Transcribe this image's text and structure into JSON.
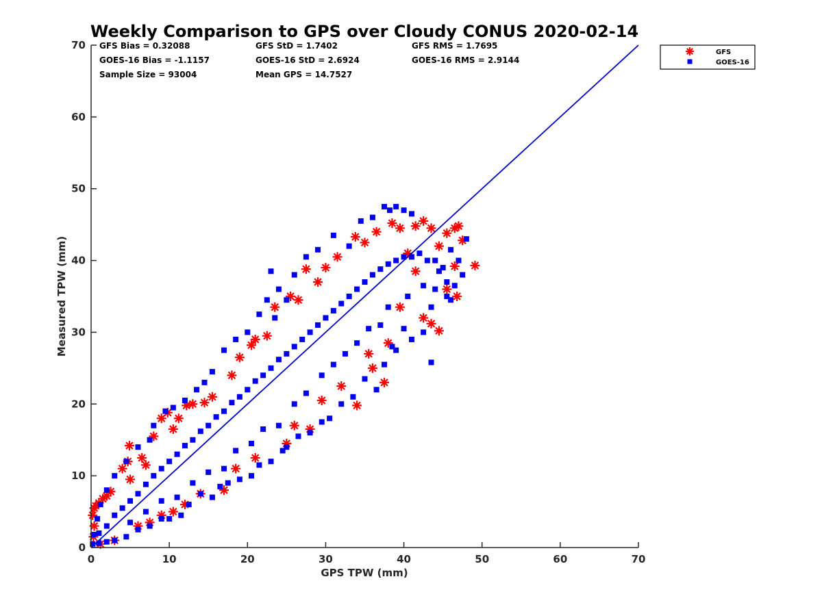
{
  "chart_data": {
    "type": "scatter",
    "title": "Weekly Comparison to GPS over Cloudy CONUS 2020-02-14",
    "xlabel": "GPS TPW (mm)",
    "ylabel": "Measured TPW (mm)",
    "xlim": [
      0,
      70
    ],
    "ylim": [
      0,
      70
    ],
    "xticks": [
      "0",
      "10",
      "20",
      "30",
      "40",
      "50",
      "60",
      "70"
    ],
    "yticks": [
      "0",
      "10",
      "20",
      "30",
      "40",
      "50",
      "60",
      "70"
    ],
    "grid": false,
    "legend_position": "outside top-right",
    "stats": [
      [
        "GFS Bias = 0.32088",
        "GFS StD = 1.7402",
        "GFS RMS = 1.7695"
      ],
      [
        "GOES-16 Bias = -1.1157",
        "GOES-16 StD = 2.6924",
        "GOES-16 RMS = 2.9144"
      ],
      [
        "Sample Size = 93004",
        "Mean GPS = 14.7527"
      ]
    ],
    "reference_line": {
      "x": [
        0,
        70
      ],
      "y": [
        0,
        70
      ],
      "color": "#0000cc"
    },
    "series": [
      {
        "name": "GFS",
        "marker": "asterisk",
        "color": "#ff0000",
        "points": [
          [
            0.2,
            4.5
          ],
          [
            0.4,
            5.5
          ],
          [
            0.6,
            5.8
          ],
          [
            1.0,
            6.2
          ],
          [
            1.5,
            6.8
          ],
          [
            2.0,
            7.2
          ],
          [
            4.0,
            11.0
          ],
          [
            4.7,
            12.0
          ],
          [
            4.9,
            14.2
          ],
          [
            6.5,
            12.5
          ],
          [
            8.0,
            15.5
          ],
          [
            9.0,
            18.0
          ],
          [
            9.8,
            18.8
          ],
          [
            11.2,
            18.0
          ],
          [
            12.2,
            19.8
          ],
          [
            13.0,
            20.0
          ],
          [
            14.5,
            20.2
          ],
          [
            18.0,
            24.0
          ],
          [
            20.5,
            28.2
          ],
          [
            21.0,
            29.0
          ],
          [
            23.5,
            33.5
          ],
          [
            25.5,
            35.0
          ],
          [
            27.5,
            38.8
          ],
          [
            30.0,
            39.0
          ],
          [
            33.8,
            43.3
          ],
          [
            36.5,
            44.0
          ],
          [
            38.5,
            45.2
          ],
          [
            41.5,
            44.8
          ],
          [
            42.5,
            45.5
          ],
          [
            43.5,
            44.5
          ],
          [
            44.5,
            42.0
          ],
          [
            45.5,
            43.8
          ],
          [
            46.5,
            44.5
          ],
          [
            47.0,
            44.8
          ],
          [
            47.5,
            42.8
          ],
          [
            46.5,
            39.2
          ],
          [
            49.1,
            39.3
          ],
          [
            46.8,
            35.0
          ],
          [
            45.5,
            36.0
          ],
          [
            44.5,
            30.2
          ],
          [
            43.5,
            31.2
          ],
          [
            42.5,
            32.0
          ],
          [
            37.5,
            23.0
          ],
          [
            34.0,
            19.8
          ],
          [
            36.0,
            25.0
          ],
          [
            28.0,
            16.5
          ],
          [
            25.0,
            14.5
          ],
          [
            17.0,
            8.0
          ],
          [
            12.0,
            6.0
          ],
          [
            9.0,
            4.5
          ],
          [
            6.0,
            3.0
          ],
          [
            3.0,
            1.0
          ],
          [
            1.2,
            0.5
          ],
          [
            0.3,
            1.5
          ],
          [
            0.4,
            3.0
          ],
          [
            2.5,
            7.8
          ],
          [
            5.0,
            9.5
          ],
          [
            7.0,
            11.5
          ],
          [
            10.5,
            16.5
          ],
          [
            15.5,
            21.0
          ],
          [
            19.0,
            26.5
          ],
          [
            22.5,
            29.5
          ],
          [
            26.5,
            34.5
          ],
          [
            29.0,
            37.0
          ],
          [
            31.5,
            40.5
          ],
          [
            35.0,
            42.5
          ],
          [
            39.5,
            44.5
          ],
          [
            40.5,
            41.0
          ],
          [
            41.5,
            38.5
          ],
          [
            39.5,
            33.5
          ],
          [
            38.0,
            28.5
          ],
          [
            35.5,
            27.0
          ],
          [
            32.0,
            22.5
          ],
          [
            29.5,
            20.5
          ],
          [
            26.0,
            17.0
          ],
          [
            21.0,
            12.5
          ],
          [
            18.5,
            11.0
          ],
          [
            14.0,
            7.5
          ],
          [
            10.5,
            5.0
          ],
          [
            7.5,
            3.5
          ]
        ]
      },
      {
        "name": "GOES-16",
        "marker": "square",
        "color": "#0000ee",
        "points": [
          [
            1.0,
            2.0
          ],
          [
            2.0,
            3.0
          ],
          [
            3.0,
            4.5
          ],
          [
            4.0,
            5.5
          ],
          [
            5.0,
            6.5
          ],
          [
            6.0,
            7.5
          ],
          [
            7.0,
            8.8
          ],
          [
            8.0,
            10.0
          ],
          [
            9.0,
            11.0
          ],
          [
            10.0,
            12.0
          ],
          [
            11.0,
            13.0
          ],
          [
            12.0,
            14.2
          ],
          [
            13.0,
            15.0
          ],
          [
            14.0,
            16.2
          ],
          [
            15.0,
            17.0
          ],
          [
            16.0,
            18.2
          ],
          [
            17.0,
            19.0
          ],
          [
            18.0,
            20.2
          ],
          [
            19.0,
            21.0
          ],
          [
            20.0,
            22.0
          ],
          [
            21.0,
            23.2
          ],
          [
            22.0,
            24.0
          ],
          [
            23.0,
            25.0
          ],
          [
            24.0,
            26.2
          ],
          [
            25.0,
            27.0
          ],
          [
            26.0,
            28.0
          ],
          [
            27.0,
            29.0
          ],
          [
            28.0,
            30.0
          ],
          [
            29.0,
            31.0
          ],
          [
            30.0,
            32.0
          ],
          [
            31.0,
            33.0
          ],
          [
            32.0,
            34.0
          ],
          [
            33.0,
            35.0
          ],
          [
            34.0,
            36.0
          ],
          [
            35.0,
            37.0
          ],
          [
            36.0,
            38.0
          ],
          [
            37.0,
            38.8
          ],
          [
            38.0,
            39.5
          ],
          [
            39.0,
            40.0
          ],
          [
            40.0,
            40.5
          ],
          [
            41.0,
            40.5
          ],
          [
            42.0,
            41.0
          ],
          [
            43.0,
            40.0
          ],
          [
            44.0,
            40.0
          ],
          [
            45.0,
            39.0
          ],
          [
            37.5,
            47.5
          ],
          [
            38.2,
            47.0
          ],
          [
            39.0,
            47.5
          ],
          [
            40.0,
            47.0
          ],
          [
            41.0,
            46.5
          ],
          [
            36.0,
            46.0
          ],
          [
            34.5,
            45.5
          ],
          [
            31.0,
            43.5
          ],
          [
            29.0,
            41.5
          ],
          [
            27.5,
            40.5
          ],
          [
            24.0,
            36.0
          ],
          [
            22.5,
            34.5
          ],
          [
            21.5,
            32.5
          ],
          [
            20.0,
            30.0
          ],
          [
            18.5,
            29.0
          ],
          [
            17.0,
            27.5
          ],
          [
            15.5,
            24.5
          ],
          [
            14.5,
            23.0
          ],
          [
            13.5,
            22.0
          ],
          [
            12.0,
            20.5
          ],
          [
            10.5,
            19.5
          ],
          [
            9.5,
            19.0
          ],
          [
            8.0,
            17.0
          ],
          [
            7.5,
            15.0
          ],
          [
            6.0,
            14.0
          ],
          [
            4.5,
            12.0
          ],
          [
            3.0,
            10.0
          ],
          [
            2.0,
            8.0
          ],
          [
            1.2,
            6.0
          ],
          [
            0.8,
            4.0
          ],
          [
            23.0,
            38.5
          ],
          [
            26.0,
            38.0
          ],
          [
            23.5,
            32.0
          ],
          [
            25.0,
            34.5
          ],
          [
            33.0,
            42.0
          ],
          [
            46.0,
            41.5
          ],
          [
            47.0,
            40.0
          ],
          [
            48.0,
            43.0
          ],
          [
            47.5,
            38.0
          ],
          [
            46.5,
            36.5
          ],
          [
            46.0,
            34.5
          ],
          [
            45.5,
            35.0
          ],
          [
            44.0,
            36.0
          ],
          [
            43.5,
            33.5
          ],
          [
            42.5,
            30.0
          ],
          [
            41.0,
            29.0
          ],
          [
            40.0,
            30.5
          ],
          [
            39.0,
            27.5
          ],
          [
            38.5,
            28.0
          ],
          [
            37.5,
            25.5
          ],
          [
            36.5,
            22.0
          ],
          [
            35.0,
            23.5
          ],
          [
            33.5,
            21.0
          ],
          [
            32.0,
            20.0
          ],
          [
            30.5,
            18.0
          ],
          [
            29.5,
            17.5
          ],
          [
            28.0,
            16.0
          ],
          [
            26.5,
            15.5
          ],
          [
            25.0,
            14.0
          ],
          [
            24.5,
            13.5
          ],
          [
            23.0,
            12.0
          ],
          [
            21.5,
            11.5
          ],
          [
            20.5,
            10.0
          ],
          [
            19.0,
            9.5
          ],
          [
            17.5,
            9.0
          ],
          [
            16.5,
            8.5
          ],
          [
            15.5,
            7.0
          ],
          [
            14.0,
            7.5
          ],
          [
            12.5,
            6.0
          ],
          [
            11.5,
            4.5
          ],
          [
            10.0,
            4.0
          ],
          [
            9.0,
            4.0
          ],
          [
            7.5,
            3.0
          ],
          [
            6.0,
            2.5
          ],
          [
            4.5,
            1.5
          ],
          [
            3.0,
            1.0
          ],
          [
            2.0,
            0.8
          ],
          [
            1.0,
            0.6
          ],
          [
            0.2,
            0.5
          ],
          [
            0.3,
            1.8
          ],
          [
            43.5,
            25.8
          ],
          [
            42.5,
            36.5
          ],
          [
            44.5,
            38.5
          ],
          [
            45.5,
            37.0
          ],
          [
            40.5,
            35.0
          ],
          [
            38.0,
            33.5
          ],
          [
            37.0,
            31.0
          ],
          [
            35.5,
            30.5
          ],
          [
            34.0,
            28.5
          ],
          [
            32.5,
            27.0
          ],
          [
            31.0,
            25.5
          ],
          [
            29.5,
            24.0
          ],
          [
            27.5,
            21.5
          ],
          [
            26.0,
            20.0
          ],
          [
            24.0,
            17.0
          ],
          [
            22.0,
            16.5
          ],
          [
            20.5,
            14.5
          ],
          [
            18.5,
            13.5
          ],
          [
            17.0,
            11.0
          ],
          [
            15.0,
            10.5
          ],
          [
            13.0,
            9.0
          ],
          [
            11.0,
            7.0
          ],
          [
            9.0,
            6.5
          ],
          [
            7.0,
            5.0
          ],
          [
            5.0,
            3.5
          ]
        ]
      }
    ]
  }
}
